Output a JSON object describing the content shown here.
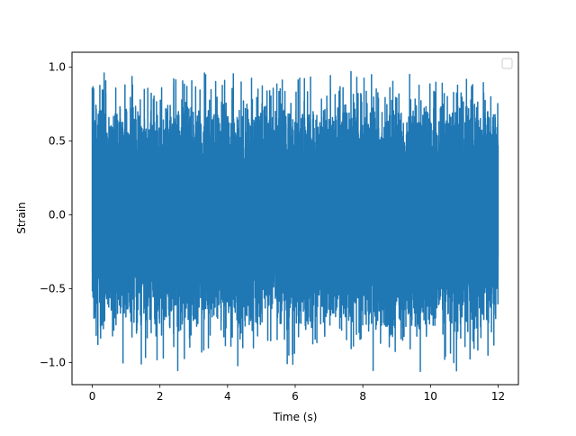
{
  "chart_data": {
    "type": "line",
    "title": "",
    "xlabel": "Time (s)",
    "ylabel": "Strain",
    "xlim": [
      -0.6,
      12.6
    ],
    "ylim": [
      -1.15,
      1.1
    ],
    "xticks": [
      0,
      2,
      4,
      6,
      8,
      10,
      12
    ],
    "yticks": [
      -1.0,
      -0.5,
      0.0,
      0.5,
      1.0
    ],
    "xtick_labels": [
      "0",
      "2",
      "4",
      "6",
      "8",
      "10",
      "12"
    ],
    "ytick_labels": [
      "−1.0",
      "−0.5",
      "0.0",
      "0.5",
      "1.0"
    ],
    "grid": false,
    "legend": {
      "placement": "top-right",
      "entries": []
    },
    "series": [
      {
        "color": "#1f77b4",
        "sample_rate_hz": 2000,
        "x_start": 0.0,
        "x_end": 12.0,
        "approx_std": 0.3,
        "envelope_max": 0.96,
        "envelope_min": -1.06,
        "peaks": [
          {
            "x": 0.0,
            "y": 0.86
          },
          {
            "x": 0.35,
            "y": 0.96
          },
          {
            "x": 0.6,
            "y": -0.82
          },
          {
            "x": 1.45,
            "y": -1.01
          },
          {
            "x": 2.05,
            "y": 0.86
          },
          {
            "x": 2.1,
            "y": -0.97
          },
          {
            "x": 4.45,
            "y": -0.9
          },
          {
            "x": 4.9,
            "y": 0.85
          },
          {
            "x": 7.65,
            "y": 0.97
          },
          {
            "x": 8.8,
            "y": 0.86
          },
          {
            "x": 9.7,
            "y": -1.06
          },
          {
            "x": 11.7,
            "y": -0.95
          },
          {
            "x": 12.0,
            "y": 0.47
          }
        ]
      }
    ]
  }
}
